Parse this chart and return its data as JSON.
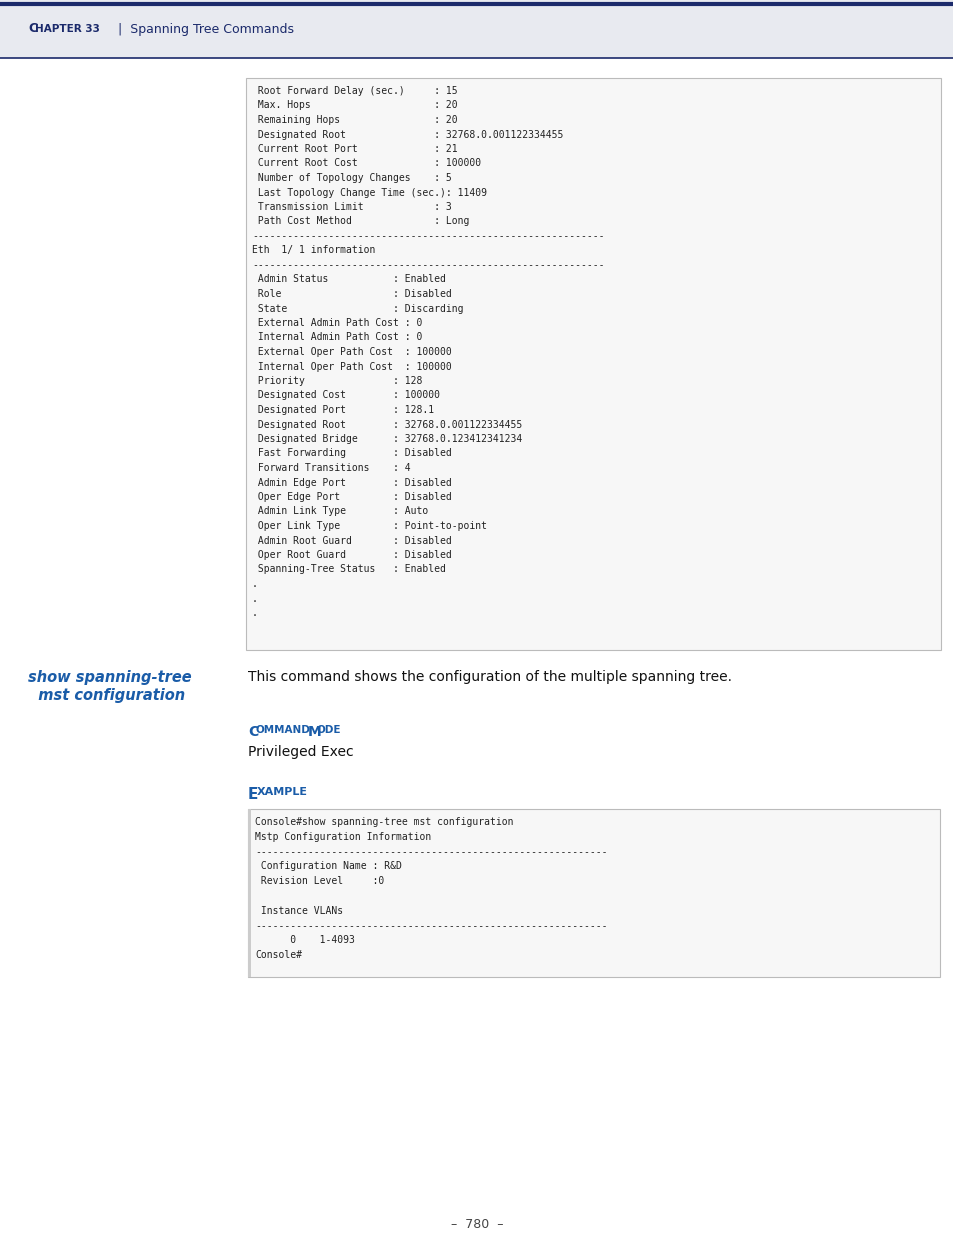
{
  "page_bg": "#ffffff",
  "header_bg": "#e8eaf0",
  "header_line_color": "#1b2a6b",
  "header_text_color": "#1b2a6b",
  "header_chapter": "CHAPTER 33",
  "header_sep": "  |  ",
  "header_rest": "Spanning Tree Commands",
  "footer_text": "–  780  –",
  "footer_text_color": "#444444",
  "code_box_bg": "#f7f7f7",
  "code_box_border": "#bbbbbb",
  "code_text_color": "#222222",
  "command_color": "#1a5ca8",
  "section_title_color": "#1a5ca8",
  "body_text_color": "#111111",
  "top_code_lines": [
    " Root Forward Delay (sec.)     : 15",
    " Max. Hops                     : 20",
    " Remaining Hops                : 20",
    " Designated Root               : 32768.0.001122334455",
    " Current Root Port             : 21",
    " Current Root Cost             : 100000",
    " Number of Topology Changes    : 5",
    " Last Topology Change Time (sec.): 11409",
    " Transmission Limit            : 3",
    " Path Cost Method              : Long",
    "------------------------------------------------------------",
    "Eth  1/ 1 information",
    "------------------------------------------------------------",
    " Admin Status           : Enabled",
    " Role                   : Disabled",
    " State                  : Discarding",
    " External Admin Path Cost : 0",
    " Internal Admin Path Cost : 0",
    " External Oper Path Cost  : 100000",
    " Internal Oper Path Cost  : 100000",
    " Priority               : 128",
    " Designated Cost        : 100000",
    " Designated Port        : 128.1",
    " Designated Root        : 32768.0.001122334455",
    " Designated Bridge      : 32768.0.123412341234",
    " Fast Forwarding        : Disabled",
    " Forward Transitions    : 4",
    " Admin Edge Port        : Disabled",
    " Oper Edge Port         : Disabled",
    " Admin Link Type        : Auto",
    " Oper Link Type         : Point-to-point",
    " Admin Root Guard       : Disabled",
    " Oper Root Guard        : Disabled",
    " Spanning-Tree Status   : Enabled",
    ".",
    ".",
    "."
  ],
  "cmd_left_line1": "show spanning-tree",
  "cmd_left_line2": "  mst configuration",
  "command_description": "This command shows the configuration of the multiple spanning tree.",
  "cmd_mode_title": "Command Mode",
  "cmd_mode_title_caps": "OMMAND ODE",
  "cmd_mode_value": "Privileged Exec",
  "example_title": "Example",
  "example_title_caps": "XAMPLE",
  "example_code_lines": [
    "Console#show spanning-tree mst configuration",
    "Mstp Configuration Information",
    "------------------------------------------------------------",
    " Configuration Name : R&D",
    " Revision Level     :0",
    "",
    " Instance VLANs",
    "------------------------------------------------------------",
    "      0    1-4093",
    "Console#"
  ]
}
